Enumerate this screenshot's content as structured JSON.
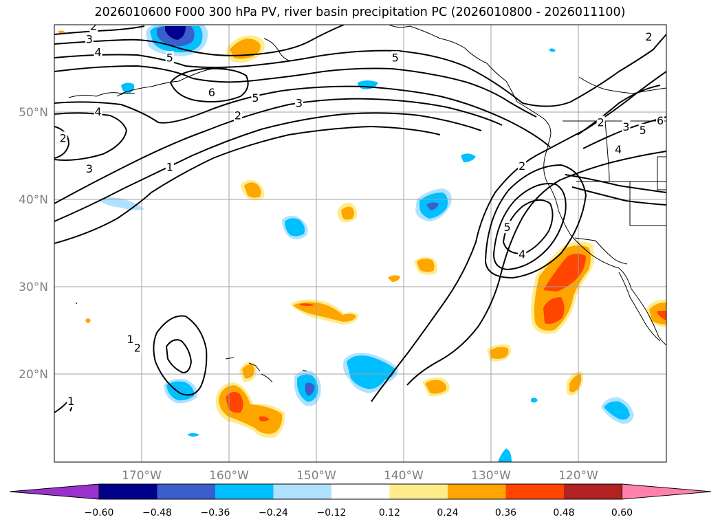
{
  "title": "2026010600 F000 300 hPa PV, river basin precipitation PC (2026010800 - 2026011100)",
  "map": {
    "projection": "equidistant cylindrical",
    "extent": {
      "lon_min": -180,
      "lon_max": -110,
      "lat_min": 10,
      "lat_max": 60
    },
    "lon_ticks": [
      {
        "lon": -170,
        "label": "170°W"
      },
      {
        "lon": -160,
        "label": "160°W"
      },
      {
        "lon": -150,
        "label": "150°W"
      },
      {
        "lon": -140,
        "label": "140°W"
      },
      {
        "lon": -130,
        "label": "130°W"
      },
      {
        "lon": -120,
        "label": "120°W"
      }
    ],
    "lat_ticks": [
      {
        "lat": 50,
        "label": "50°N"
      },
      {
        "lat": 40,
        "label": "40°N"
      },
      {
        "lat": 30,
        "label": "30°N"
      },
      {
        "lat": 20,
        "label": "20°N"
      }
    ],
    "grid": true,
    "colors": {
      "grid": "#a0a0a0",
      "tick_label": "#808080",
      "contour": "#000000",
      "coast": "#000000"
    }
  },
  "pv_contour_labels": [
    {
      "text": "2",
      "lon": -175.5,
      "lat": 59.8
    },
    {
      "text": "3",
      "lon": -176.0,
      "lat": 58.3
    },
    {
      "text": "4",
      "lon": -175.0,
      "lat": 56.8
    },
    {
      "text": "5",
      "lon": -166.8,
      "lat": 56.2
    },
    {
      "text": "5",
      "lon": -141.0,
      "lat": 56.2
    },
    {
      "text": "5",
      "lon": -157.0,
      "lat": 51.6
    },
    {
      "text": "6",
      "lon": -162.0,
      "lat": 52.2
    },
    {
      "text": "3",
      "lon": -152.0,
      "lat": 51.0
    },
    {
      "text": "4",
      "lon": -175.0,
      "lat": 50.0
    },
    {
      "text": "2",
      "lon": -159.0,
      "lat": 49.6
    },
    {
      "text": "2",
      "lon": -179.0,
      "lat": 47.0
    },
    {
      "text": "3",
      "lon": -176.0,
      "lat": 43.5
    },
    {
      "text": "1",
      "lon": -166.8,
      "lat": 43.7
    },
    {
      "text": "2",
      "lon": -112.0,
      "lat": 58.6
    },
    {
      "text": "2",
      "lon": -117.5,
      "lat": 48.8
    },
    {
      "text": "3",
      "lon": -114.6,
      "lat": 48.3
    },
    {
      "text": "5",
      "lon": -112.7,
      "lat": 47.9
    },
    {
      "text": "6",
      "lon": -110.7,
      "lat": 49.0
    },
    {
      "text": "4",
      "lon": -115.5,
      "lat": 45.7
    },
    {
      "text": "2",
      "lon": -126.5,
      "lat": 43.8
    },
    {
      "text": "5",
      "lon": -128.2,
      "lat": 36.8
    },
    {
      "text": "4",
      "lon": -126.5,
      "lat": 33.7
    },
    {
      "text": "1",
      "lon": -171.3,
      "lat": 24.0
    },
    {
      "text": "2",
      "lon": -170.5,
      "lat": 23.0
    },
    {
      "text": "1",
      "lon": -178.1,
      "lat": 16.9
    }
  ],
  "colorbar": {
    "extend": "both",
    "colors": [
      "#9932cc",
      "#00008b",
      "#3a5fcd",
      "#00bfff",
      "#b0e2ff",
      "#ffffff",
      "#ffec8b",
      "#ffa500",
      "#ff4500",
      "#b22222",
      "#ff82ab"
    ],
    "tick_labels": [
      "−0.60",
      "−0.48",
      "−0.36",
      "−0.24",
      "−0.12",
      "0.12",
      "0.24",
      "0.36",
      "0.48",
      "0.60"
    ]
  },
  "legend_swatches": [
    "min-purple",
    "navy",
    "royal-blue",
    "deep-sky-blue",
    "light-sky-blue",
    "white",
    "light-goldenrod",
    "orange",
    "orange-red",
    "firebrick",
    "max-pink"
  ]
}
